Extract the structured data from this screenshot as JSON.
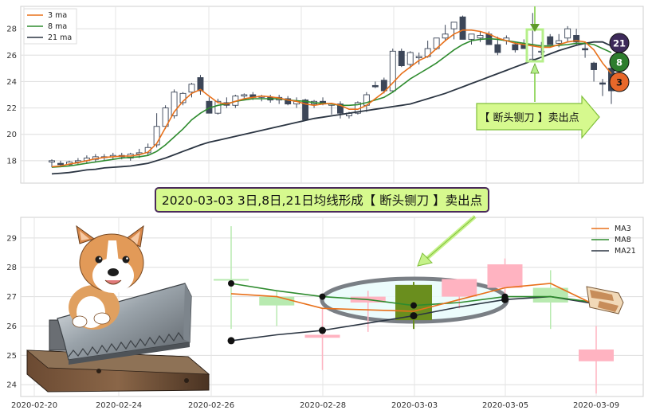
{
  "chart_data": [
    {
      "type": "candlestick",
      "panel": "overview",
      "ylim": [
        16.3,
        29.7
      ],
      "yticks": [
        18,
        20,
        22,
        24,
        26,
        28
      ],
      "grid": true,
      "legend_position": "top-left",
      "legend": [
        "3 ma",
        "8 ma",
        "21 ma"
      ],
      "colors": {
        "ma3": "#e8701a",
        "ma8": "#2e8b2e",
        "ma21": "#2b3542",
        "up": "#ffffff",
        "down": "#3c4658"
      },
      "candles": [
        {
          "o": 17.9,
          "h": 18.1,
          "l": 17.5,
          "c": 18.0
        },
        {
          "o": 17.8,
          "h": 18.0,
          "l": 17.5,
          "c": 17.7
        },
        {
          "o": 17.7,
          "h": 18.0,
          "l": 17.6,
          "c": 17.9
        },
        {
          "o": 17.9,
          "h": 18.2,
          "l": 17.7,
          "c": 18.0
        },
        {
          "o": 18.0,
          "h": 18.4,
          "l": 17.8,
          "c": 18.2
        },
        {
          "o": 18.1,
          "h": 18.5,
          "l": 17.9,
          "c": 18.3
        },
        {
          "o": 18.3,
          "h": 18.5,
          "l": 18.0,
          "c": 18.3
        },
        {
          "o": 18.3,
          "h": 18.6,
          "l": 18.1,
          "c": 18.4
        },
        {
          "o": 18.4,
          "h": 18.6,
          "l": 18.1,
          "c": 18.3
        },
        {
          "o": 18.2,
          "h": 18.6,
          "l": 18.0,
          "c": 18.5
        },
        {
          "o": 18.5,
          "h": 18.9,
          "l": 18.2,
          "c": 18.6
        },
        {
          "o": 18.6,
          "h": 19.3,
          "l": 18.4,
          "c": 19.0
        },
        {
          "o": 19.2,
          "h": 21.6,
          "l": 19.0,
          "c": 20.6
        },
        {
          "o": 20.6,
          "h": 22.2,
          "l": 20.4,
          "c": 22.0
        },
        {
          "o": 21.4,
          "h": 23.4,
          "l": 21.2,
          "c": 23.2
        },
        {
          "o": 22.4,
          "h": 23.2,
          "l": 22.2,
          "c": 23.1
        },
        {
          "o": 23.2,
          "h": 23.9,
          "l": 22.8,
          "c": 23.8
        },
        {
          "o": 24.3,
          "h": 24.5,
          "l": 23.0,
          "c": 23.3
        },
        {
          "o": 22.5,
          "h": 22.8,
          "l": 21.6,
          "c": 21.6
        },
        {
          "o": 21.6,
          "h": 22.7,
          "l": 21.5,
          "c": 22.5
        },
        {
          "o": 22.4,
          "h": 22.8,
          "l": 22.0,
          "c": 22.2
        },
        {
          "o": 22.2,
          "h": 23.0,
          "l": 22.0,
          "c": 22.9
        },
        {
          "o": 22.9,
          "h": 23.1,
          "l": 22.7,
          "c": 23.0
        },
        {
          "o": 23.0,
          "h": 23.2,
          "l": 22.6,
          "c": 22.8
        },
        {
          "o": 22.8,
          "h": 23.0,
          "l": 22.5,
          "c": 22.9
        },
        {
          "o": 22.8,
          "h": 23.0,
          "l": 22.4,
          "c": 22.6
        },
        {
          "o": 22.6,
          "h": 23.0,
          "l": 22.3,
          "c": 22.8
        },
        {
          "o": 22.7,
          "h": 22.9,
          "l": 22.2,
          "c": 22.3
        },
        {
          "o": 22.3,
          "h": 22.8,
          "l": 22.0,
          "c": 22.5
        },
        {
          "o": 22.6,
          "h": 22.7,
          "l": 21.1,
          "c": 21.1
        },
        {
          "o": 22.3,
          "h": 22.6,
          "l": 22.0,
          "c": 22.5
        },
        {
          "o": 22.5,
          "h": 22.8,
          "l": 22.2,
          "c": 22.3
        },
        {
          "o": 22.2,
          "h": 22.4,
          "l": 21.5,
          "c": 22.3
        },
        {
          "o": 22.3,
          "h": 22.5,
          "l": 21.2,
          "c": 21.6
        },
        {
          "o": 21.4,
          "h": 21.7,
          "l": 21.2,
          "c": 21.6
        },
        {
          "o": 21.6,
          "h": 22.5,
          "l": 21.5,
          "c": 22.4
        },
        {
          "o": 22.2,
          "h": 23.2,
          "l": 21.7,
          "c": 23.0
        },
        {
          "o": 23.7,
          "h": 24.0,
          "l": 23.5,
          "c": 23.6
        },
        {
          "o": 24.1,
          "h": 24.3,
          "l": 23.1,
          "c": 23.3
        },
        {
          "o": 23.3,
          "h": 26.5,
          "l": 23.2,
          "c": 26.3
        },
        {
          "o": 26.3,
          "h": 26.5,
          "l": 25.1,
          "c": 25.2
        },
        {
          "o": 25.3,
          "h": 26.3,
          "l": 25.0,
          "c": 26.2
        },
        {
          "o": 25.8,
          "h": 26.2,
          "l": 25.3,
          "c": 25.9
        },
        {
          "o": 25.9,
          "h": 27.1,
          "l": 25.8,
          "c": 26.5
        },
        {
          "o": 26.5,
          "h": 27.3,
          "l": 26.4,
          "c": 27.3
        },
        {
          "o": 27.3,
          "h": 28.3,
          "l": 27.1,
          "c": 27.6
        },
        {
          "o": 28.0,
          "h": 28.5,
          "l": 27.2,
          "c": 28.5
        },
        {
          "o": 28.9,
          "h": 29.0,
          "l": 27.2,
          "c": 27.2
        },
        {
          "o": 27.2,
          "h": 27.6,
          "l": 26.8,
          "c": 27.6
        },
        {
          "o": 27.3,
          "h": 27.8,
          "l": 27.0,
          "c": 27.5
        },
        {
          "o": 27.6,
          "h": 27.8,
          "l": 26.8,
          "c": 26.8
        },
        {
          "o": 26.8,
          "h": 27.4,
          "l": 26.0,
          "c": 26.2
        },
        {
          "o": 27.1,
          "h": 27.5,
          "l": 26.8,
          "c": 27.3
        },
        {
          "o": 26.8,
          "h": 27.0,
          "l": 26.2,
          "c": 26.4
        },
        {
          "o": 26.8,
          "h": 27.2,
          "l": 26.5,
          "c": 26.5
        },
        {
          "o": 25.6,
          "h": 29.2,
          "l": 25.5,
          "c": 25.7
        },
        {
          "o": 26.3,
          "h": 27.0,
          "l": 26.0,
          "c": 26.3
        },
        {
          "o": 27.4,
          "h": 27.6,
          "l": 26.8,
          "c": 26.8
        },
        {
          "o": 26.9,
          "h": 27.6,
          "l": 26.6,
          "c": 27.1
        },
        {
          "o": 27.3,
          "h": 28.2,
          "l": 27.0,
          "c": 28.0
        },
        {
          "o": 27.5,
          "h": 28.0,
          "l": 26.8,
          "c": 27.0
        },
        {
          "o": 26.5,
          "h": 26.9,
          "l": 25.8,
          "c": 26.4
        },
        {
          "o": 25.4,
          "h": 25.5,
          "l": 24.0,
          "c": 24.9
        },
        {
          "o": 23.9,
          "h": 24.2,
          "l": 22.9,
          "c": 23.8
        },
        {
          "o": 25.0,
          "h": 25.1,
          "l": 22.3,
          "c": 23.3
        }
      ],
      "ma3": [
        17.55,
        17.6,
        17.75,
        17.85,
        18.0,
        18.15,
        18.25,
        18.3,
        18.35,
        18.35,
        18.45,
        18.65,
        19.3,
        20.5,
        21.7,
        22.5,
        23.1,
        23.4,
        22.9,
        22.4,
        22.3,
        22.5,
        22.7,
        22.8,
        22.9,
        22.85,
        22.75,
        22.6,
        22.5,
        22.3,
        22.2,
        22.3,
        22.35,
        22.2,
        21.9,
        21.9,
        22.2,
        22.7,
        23.2,
        23.9,
        24.6,
        25.1,
        25.6,
        25.9,
        26.5,
        27.1,
        27.6,
        27.9,
        27.9,
        27.8,
        27.6,
        27.3,
        27.1,
        26.9,
        26.8,
        26.7,
        26.6,
        26.6,
        26.8,
        27.0,
        27.1,
        27.0,
        26.4,
        25.4,
        24.6
      ],
      "ma8": [
        17.5,
        17.55,
        17.6,
        17.7,
        17.8,
        17.9,
        18.0,
        18.1,
        18.2,
        18.25,
        18.3,
        18.4,
        18.7,
        19.2,
        19.8,
        20.4,
        21.1,
        21.6,
        22.0,
        22.2,
        22.3,
        22.5,
        22.6,
        22.7,
        22.7,
        22.7,
        22.7,
        22.6,
        22.55,
        22.5,
        22.4,
        22.35,
        22.3,
        22.2,
        22.2,
        22.25,
        22.4,
        22.6,
        22.8,
        23.2,
        23.7,
        24.2,
        24.6,
        25.0,
        25.4,
        25.9,
        26.4,
        26.8,
        27.1,
        27.2,
        27.25,
        27.2,
        27.1,
        27.0,
        26.9,
        26.8,
        26.7,
        26.7,
        26.75,
        26.8,
        26.9,
        26.9,
        26.8,
        26.5,
        26.2
      ],
      "ma21": [
        17.0,
        17.05,
        17.1,
        17.2,
        17.3,
        17.35,
        17.45,
        17.5,
        17.55,
        17.6,
        17.7,
        17.8,
        18.0,
        18.2,
        18.45,
        18.7,
        18.95,
        19.2,
        19.4,
        19.55,
        19.7,
        19.85,
        20.0,
        20.15,
        20.3,
        20.45,
        20.6,
        20.75,
        20.9,
        21.05,
        21.2,
        21.3,
        21.4,
        21.5,
        21.6,
        21.7,
        21.8,
        21.9,
        22.0,
        22.1,
        22.2,
        22.3,
        22.5,
        22.7,
        22.9,
        23.1,
        23.35,
        23.6,
        23.85,
        24.1,
        24.35,
        24.6,
        24.85,
        25.1,
        25.35,
        25.6,
        25.85,
        26.1,
        26.35,
        26.55,
        26.75,
        26.9,
        27.0,
        27.0,
        26.7
      ],
      "badges": [
        "21",
        "8",
        "3"
      ],
      "annotation": "【 断头铡刀 】卖出点"
    },
    {
      "type": "candlestick",
      "panel": "zoom",
      "title": "2020-03-03 3日,8日,21日均线形成【 断头铡刀 】卖出点",
      "ylim": [
        23.6,
        29.7
      ],
      "yticks": [
        24,
        25,
        26,
        27,
        28,
        29
      ],
      "x": [
        "2020-02-20",
        "2020-02-24",
        "2020-02-26",
        "2020-02-28",
        "2020-03-03",
        "2020-03-05",
        "2020-03-09"
      ],
      "grid": true,
      "legend_position": "top-right",
      "legend": [
        "MA3",
        "MA8",
        "MA21"
      ],
      "colors": {
        "ma3": "#e8701a",
        "ma8": "#2e8b2e",
        "ma21": "#2b3542",
        "up": "#b8eab0",
        "down": "#ffb3c1",
        "signal": "#6a8e1e"
      },
      "candles": [
        {
          "o": 27.6,
          "h": 29.4,
          "l": 25.9,
          "c": 27.6,
          "color": "up"
        },
        {
          "o": 26.7,
          "h": 27.2,
          "l": 26.0,
          "c": 27.0,
          "color": "up"
        },
        {
          "o": 25.6,
          "h": 26.6,
          "l": 24.5,
          "c": 25.7,
          "color": "down"
        },
        {
          "o": 26.8,
          "h": 27.2,
          "l": 25.8,
          "c": 27.0,
          "color": "down"
        },
        {
          "o": 26.2,
          "h": 27.5,
          "l": 25.9,
          "c": 27.4,
          "color": "signal"
        },
        {
          "o": 27.0,
          "h": 27.6,
          "l": 26.6,
          "c": 27.6,
          "color": "down"
        },
        {
          "o": 27.3,
          "h": 28.3,
          "l": 27.0,
          "c": 28.1,
          "color": "down"
        },
        {
          "o": 26.8,
          "h": 27.9,
          "l": 25.9,
          "c": 27.3,
          "color": "up"
        },
        {
          "o": 24.8,
          "h": 26.0,
          "l": 23.7,
          "c": 25.2,
          "color": "down"
        }
      ],
      "ma3": [
        27.1,
        27.0,
        26.6,
        26.55,
        26.5,
        26.9,
        27.3,
        27.45,
        26.7
      ],
      "ma8": [
        27.45,
        27.2,
        27.0,
        26.9,
        26.7,
        26.8,
        27.0,
        27.0,
        26.8
      ],
      "ma21": [
        25.5,
        25.7,
        25.85,
        26.1,
        26.35,
        26.65,
        26.9,
        27.0,
        26.75
      ]
    }
  ]
}
